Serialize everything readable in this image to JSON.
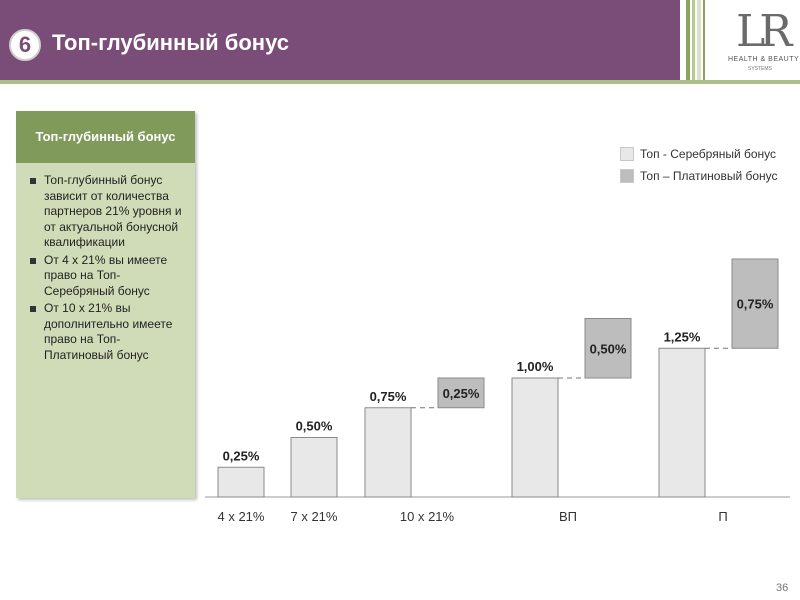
{
  "header": {
    "step_number": "6",
    "title": "Топ-глубинный бонус"
  },
  "logo": {
    "mark": "LR",
    "text": "HEALTH & BEAUTY",
    "subtext": "SYSTEMS"
  },
  "panel": {
    "title": "Топ-глубинный бонус",
    "bullets": [
      "Топ-глубинный бонус зависит от количества партнеров 21% уровня и от актуальной бонусной квалификации",
      "От 4 x 21% вы имеете право на Топ-Серебряный бонус",
      "От 10 x 21% вы дополнительно имеете право на Топ-Платиновый бонус"
    ]
  },
  "legend": [
    {
      "label": "Топ - Серебряный бонус",
      "color": "#e8e8e8"
    },
    {
      "label": "Топ – Платиновый бонус",
      "color": "#bdbdbd"
    }
  ],
  "colors": {
    "header": "#7a4d78",
    "panel_head": "#7f9a5a",
    "panel_body": "#cfdcb7",
    "silver_bar": "#e8e8e8",
    "platinum_bar": "#bdbdbd"
  },
  "chart_data": {
    "type": "bar",
    "categories": [
      "4 x 21%",
      "7 x 21%",
      "10 x 21%",
      "ВП",
      "П"
    ],
    "ylim": [
      0,
      2.0
    ],
    "series": [
      {
        "name": "Топ - Серебряный бонус",
        "values": [
          0.25,
          0.5,
          0.75,
          1.0,
          1.25
        ],
        "labels": [
          "0,25%",
          "0,50%",
          "0,75%",
          "1,00%",
          "1,25%"
        ]
      },
      {
        "name": "Топ – Платиновый бонус",
        "values": [
          null,
          null,
          0.25,
          0.5,
          0.75
        ],
        "labels": [
          "",
          "",
          "0,25%",
          "0,50%",
          "0,75%"
        ]
      }
    ]
  },
  "page_number": "36"
}
